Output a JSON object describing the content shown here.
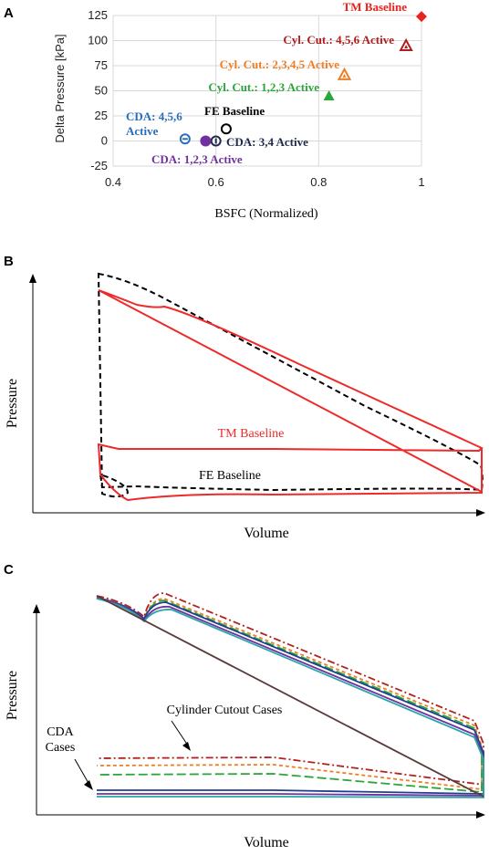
{
  "panels": {
    "a": "A",
    "b": "B",
    "c": "C"
  },
  "chart_data": [
    {
      "type": "scatter",
      "panel": "A",
      "xlabel": "BSFC (Normalized)",
      "ylabel": "Delta Pressure [kPa]",
      "xlim": [
        0.4,
        1.0
      ],
      "ylim": [
        -25,
        125
      ],
      "xticks": [
        "0.4",
        "0.6",
        "0.8",
        "1"
      ],
      "yticks": [
        "-25",
        "0",
        "25",
        "50",
        "75",
        "100",
        "125"
      ],
      "xtick_values": [
        0.4,
        0.6,
        0.8,
        1.0
      ],
      "ytick_values": [
        -25,
        0,
        25,
        50,
        75,
        100,
        125
      ],
      "grid": true,
      "points": [
        {
          "label": "TM Baseline",
          "x": 1.0,
          "y": 124,
          "marker": "diamond",
          "color": "#e8231d"
        },
        {
          "label": "Cyl. Cut.: 4,5,6 Active",
          "x": 0.97,
          "y": 95,
          "marker": "triangle-hollow",
          "color": "#b01c1c"
        },
        {
          "label": "Cyl. Cut.: 2,3,4,5 Active",
          "x": 0.85,
          "y": 66,
          "marker": "triangle-hollow",
          "color": "#ef7d24"
        },
        {
          "label": "Cyl. Cut.: 1,2,3 Active",
          "x": 0.82,
          "y": 45,
          "marker": "triangle",
          "color": "#2aa63a"
        },
        {
          "label": "FE Baseline",
          "x": 0.62,
          "y": 12,
          "marker": "circle-hollow",
          "color": "#000000"
        },
        {
          "label": "CDA: 4,5,6 Active",
          "x": 0.54,
          "y": 2,
          "marker": "circle-minus",
          "color": "#2a6ebb"
        },
        {
          "label": "CDA: 3,4 Active",
          "x": 0.6,
          "y": 0,
          "marker": "circle-bar",
          "color": "#1f2a4a"
        },
        {
          "label": "CDA: 1,2,3 Active",
          "x": 0.58,
          "y": 0,
          "marker": "circle",
          "color": "#7030a0"
        }
      ],
      "annotations": [
        {
          "text": "TM Baseline",
          "color": "#e8231d"
        },
        {
          "text": "Cyl. Cut.: 4,5,6 Active",
          "color": "#b01c1c"
        },
        {
          "text": "Cyl. Cut.: 2,3,4,5 Active",
          "color": "#ef7d24"
        },
        {
          "text": "Cyl. Cut.: 1,2,3 Active",
          "color": "#2aa63a"
        },
        {
          "text": "FE Baseline",
          "color": "#000000"
        },
        {
          "text": "CDA: 4,5,6",
          "color": "#2a6ebb"
        },
        {
          "text": "Active",
          "color": "#2a6ebb"
        },
        {
          "text": "CDA: 3,4 Active",
          "color": "#1f2a4a"
        },
        {
          "text": "CDA: 1,2,3 Active",
          "color": "#7030a0"
        }
      ]
    },
    {
      "type": "line",
      "panel": "B",
      "xlabel": "Volume",
      "ylabel": "Pressure",
      "grid": false,
      "labels": [
        {
          "text": "TM Baseline",
          "color": "#ee2a2a"
        },
        {
          "text": "FE Baseline",
          "color": "#000000"
        }
      ],
      "series": [
        {
          "color": "#ee2a2a",
          "dash": "solid"
        },
        {
          "color": "#000000",
          "dash": "dashed"
        }
      ]
    },
    {
      "type": "line",
      "panel": "C",
      "xlabel": "Volume",
      "ylabel": "Pressure",
      "grid": false,
      "labels": [
        {
          "text": "Cylinder Cutout Cases",
          "color": "#000000"
        },
        {
          "text": "CDA",
          "color": "#000000"
        },
        {
          "text": "Cases",
          "color": "#000000"
        }
      ],
      "series": [
        {
          "color": "#b0231f",
          "dash": "dashdot"
        },
        {
          "color": "#ef7d24",
          "dash": "dashed"
        },
        {
          "color": "#2aa63a",
          "dash": "longdash"
        },
        {
          "color": "#1f3f8f",
          "dash": "solid"
        },
        {
          "color": "#7030a0",
          "dash": "solid"
        },
        {
          "color": "#2aa6a6",
          "dash": "solid"
        }
      ]
    }
  ]
}
